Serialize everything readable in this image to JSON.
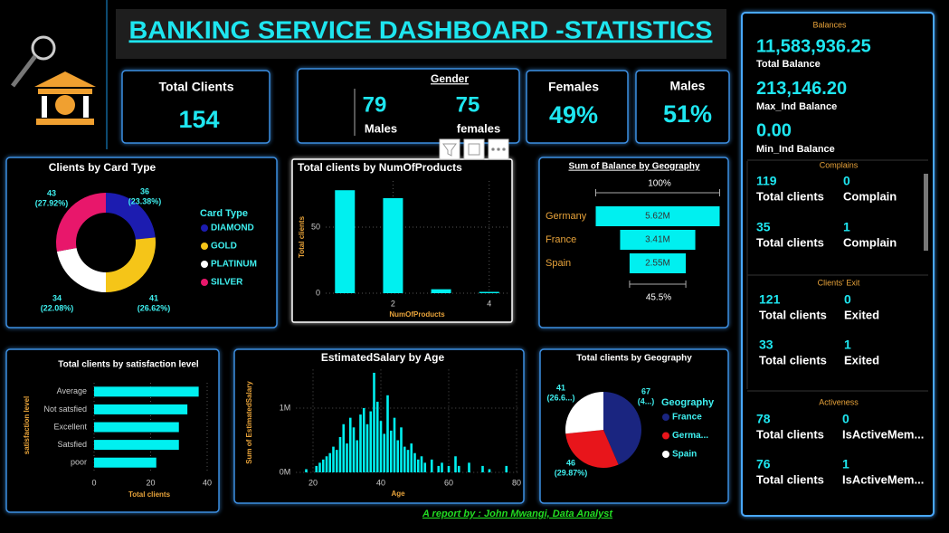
{
  "header": {
    "title": "BANKING SERVICE DASHBOARD -STATISTICS"
  },
  "cards": {
    "total_clients": {
      "label": "Total Clients",
      "value": 154
    },
    "gender": {
      "title": "Gender",
      "males": {
        "value": 79,
        "label": "Males"
      },
      "females": {
        "value": 75,
        "label": "females"
      }
    },
    "females": {
      "label": "Females",
      "value": "49%"
    },
    "males": {
      "label": "Males",
      "value": "51%"
    }
  },
  "sidebar": {
    "balances": {
      "title": "Balances",
      "items": [
        {
          "value": "11,583,936.25",
          "label": "Total Balance"
        },
        {
          "value": "213,146.20",
          "label": "Max_Ind Balance"
        },
        {
          "value": "0.00",
          "label": "Min_Ind Balance"
        }
      ]
    },
    "complains": {
      "title": "Complains",
      "rows": [
        {
          "count": 119,
          "count_label": "Total clients",
          "flag": 0,
          "flag_label": "Complain"
        },
        {
          "count": 35,
          "count_label": "Total clients",
          "flag": 1,
          "flag_label": "Complain"
        }
      ]
    },
    "exit": {
      "title": "Clients' Exit",
      "rows": [
        {
          "count": 121,
          "count_label": "Total clients",
          "flag": 0,
          "flag_label": "Exited"
        },
        {
          "count": 33,
          "count_label": "Total clients",
          "flag": 1,
          "flag_label": "Exited"
        }
      ]
    },
    "activeness": {
      "title": "Activeness",
      "rows": [
        {
          "count": 78,
          "count_label": "Total clients",
          "flag": 0,
          "flag_label": "IsActiveMem..."
        },
        {
          "count": 76,
          "count_label": "Total clients",
          "flag": 1,
          "flag_label": "IsActiveMem..."
        }
      ]
    }
  },
  "chart_data": [
    {
      "type": "donut",
      "title": "Clients by Card Type",
      "legend_title": "Card Type",
      "categories": [
        "DIAMOND",
        "GOLD",
        "PLATINUM",
        "SILVER"
      ],
      "values": [
        36,
        41,
        34,
        43
      ],
      "percent_labels": [
        "(23.38%)",
        "(26.62%)",
        "(22.08%)",
        "(27.92%)"
      ],
      "colors": [
        "#1c1cb0",
        "#f5c518",
        "#ffffff",
        "#e8176b"
      ]
    },
    {
      "type": "bar",
      "title": "Total clients by NumOfProducts",
      "x_label": "NumOfProducts",
      "y_label": "Total clients",
      "x": [
        1,
        2,
        3,
        4
      ],
      "values": [
        78,
        72,
        3,
        1
      ],
      "color": "#00f0f0",
      "xlim": [
        0.6,
        4.4
      ],
      "xticks": [
        2,
        4
      ],
      "ylim": [
        0,
        85
      ],
      "yticks": [
        0,
        50
      ],
      "grid": true
    },
    {
      "type": "funnel",
      "title": "Sum of Balance by Geography",
      "categories": [
        "Germany",
        "France",
        "Spain"
      ],
      "values": [
        5620000,
        3410000,
        2550000
      ],
      "value_labels": [
        "5.62M",
        "3.41M",
        "2.55M"
      ],
      "top_label": "100%",
      "bottom_label": "45.5%",
      "color": "#00f0f0"
    },
    {
      "type": "bar",
      "orientation": "horizontal",
      "title": "Total clients by satisfaction level",
      "x_label": "Total clients",
      "y_label": "satisfaction level",
      "categories": [
        "Average",
        "Not satsfied",
        "Excellent",
        "Satsfied",
        "poor"
      ],
      "values": [
        37,
        33,
        30,
        30,
        22
      ],
      "color": "#00f0f0",
      "xlim": [
        0,
        40
      ],
      "xticks": [
        0,
        20,
        40
      ],
      "grid": true
    },
    {
      "type": "bar",
      "title": "EstimatedSalary by Age",
      "x_label": "Age",
      "y_label": "Sum of EstimatedSalary",
      "x": [
        18,
        21,
        22,
        23,
        24,
        25,
        26,
        27,
        28,
        29,
        30,
        31,
        32,
        33,
        34,
        35,
        36,
        37,
        38,
        39,
        40,
        41,
        42,
        43,
        44,
        45,
        46,
        47,
        48,
        49,
        50,
        51,
        52,
        53,
        55,
        57,
        58,
        60,
        62,
        63,
        66,
        70,
        72,
        77
      ],
      "values": [
        50000,
        100000,
        150000,
        200000,
        250000,
        300000,
        400000,
        350000,
        550000,
        750000,
        450000,
        850000,
        700000,
        500000,
        900000,
        1000000,
        750000,
        950000,
        1550000,
        1100000,
        800000,
        600000,
        1200000,
        650000,
        850000,
        500000,
        700000,
        400000,
        350000,
        450000,
        300000,
        200000,
        250000,
        150000,
        200000,
        100000,
        150000,
        100000,
        250000,
        100000,
        150000,
        100000,
        50000,
        100000
      ],
      "color": "#00f0f0",
      "xlim": [
        15,
        81
      ],
      "xticks": [
        20,
        40,
        60,
        80
      ],
      "ylim": [
        0,
        1600000
      ],
      "yticks": [
        {
          "value": 0,
          "label": "0M"
        },
        {
          "value": 1000000,
          "label": "1M"
        }
      ],
      "grid": true
    },
    {
      "type": "pie",
      "title": "Total clients by Geography",
      "legend_title": "Geography",
      "categories": [
        "France",
        "Germa...",
        "Spain"
      ],
      "values": [
        67,
        46,
        41
      ],
      "percent_labels": [
        "(4...)",
        "(29.87%)",
        "(26.6...)"
      ],
      "colors": [
        "#1a2580",
        "#e8151b",
        "#ffffff"
      ]
    }
  ],
  "footer": {
    "text": "A report by : John Mwangi, Data Analyst"
  }
}
